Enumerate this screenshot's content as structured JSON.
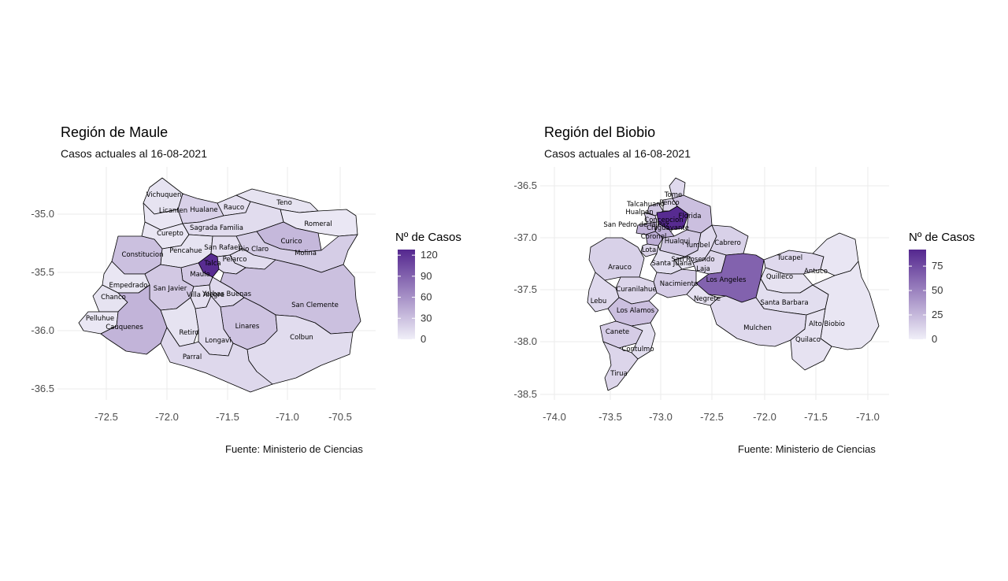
{
  "colors": {
    "low": "#f0eff8",
    "high": "#54278f",
    "grid": "#ebebeb",
    "border": "#000000"
  },
  "maps": [
    {
      "id": "maule",
      "title": "Región de Maule",
      "subtitle": "Casos actuales al 16-08-2021",
      "caption": "Fuente: Ministerio de Ciencias",
      "legend_title": "Nº de Casos",
      "legend_breaks": [
        "0",
        "30",
        "60",
        "90",
        "120"
      ],
      "legend_max": 128,
      "x_ticks": [
        "-72.5",
        "-72.0",
        "-71.5",
        "-71.0",
        "-70.5"
      ],
      "y_ticks": [
        "-35.0",
        "-35.5",
        "-36.0",
        "-36.5"
      ],
      "municipalities": [
        {
          "name": "Vichuquen",
          "cases": 8
        },
        {
          "name": "Licanten",
          "cases": 6
        },
        {
          "name": "Hualane",
          "cases": 20
        },
        {
          "name": "Rauco",
          "cases": 10
        },
        {
          "name": "Teno",
          "cases": 8
        },
        {
          "name": "Romeral",
          "cases": 5
        },
        {
          "name": "Curepto",
          "cases": 6
        },
        {
          "name": "Sagrada Familia",
          "cases": 12
        },
        {
          "name": "Curico",
          "cases": 35
        },
        {
          "name": "Molina",
          "cases": 22
        },
        {
          "name": "Constitucion",
          "cases": 30
        },
        {
          "name": "Pencahue",
          "cases": 8
        },
        {
          "name": "San Rafael",
          "cases": 10
        },
        {
          "name": "Rio Claro",
          "cases": 12
        },
        {
          "name": "Talca",
          "cases": 125
        },
        {
          "name": "Pelarco",
          "cases": 14
        },
        {
          "name": "Maule",
          "cases": 25
        },
        {
          "name": "San Clemente",
          "cases": 30
        },
        {
          "name": "Empedrado",
          "cases": 6
        },
        {
          "name": "San Javier",
          "cases": 25
        },
        {
          "name": "Villa Alegre",
          "cases": 10
        },
        {
          "name": "Yerbas Buenas",
          "cases": 15
        },
        {
          "name": "Chanco",
          "cases": 8
        },
        {
          "name": "Pelluhue",
          "cases": 5
        },
        {
          "name": "Cauquenes",
          "cases": 38
        },
        {
          "name": "Retiro",
          "cases": 8
        },
        {
          "name": "Linares",
          "cases": 28
        },
        {
          "name": "Longavi",
          "cases": 14
        },
        {
          "name": "Colbun",
          "cases": 12
        },
        {
          "name": "Parral",
          "cases": 15
        }
      ]
    },
    {
      "id": "biobio",
      "title": "Región del Biobio",
      "subtitle": "Casos actuales al 16-08-2021",
      "caption": "Fuente: Ministerio de Ciencias",
      "legend_title": "Nº de Casos",
      "legend_breaks": [
        "0",
        "25",
        "50",
        "75"
      ],
      "legend_max": 92,
      "x_ticks": [
        "-74.0",
        "-73.5",
        "-73.0",
        "-72.5",
        "-72.0",
        "-71.5",
        "-71.0"
      ],
      "y_ticks": [
        "-36.5",
        "-37.0",
        "-37.5",
        "-38.0",
        "-38.5"
      ],
      "municipalities": [
        {
          "name": "Tome",
          "cases": 10
        },
        {
          "name": "Talcahuano",
          "cases": 20
        },
        {
          "name": "Hualpen",
          "cases": 18
        },
        {
          "name": "Penco",
          "cases": 12
        },
        {
          "name": "Concepcion",
          "cases": 90
        },
        {
          "name": "Florida",
          "cases": 22
        },
        {
          "name": "Chiguayante",
          "cases": 30
        },
        {
          "name": "San Pedro de la Paz",
          "cases": 28
        },
        {
          "name": "Coronel",
          "cases": 30
        },
        {
          "name": "Lota",
          "cases": 12
        },
        {
          "name": "Hualqui",
          "cases": 18
        },
        {
          "name": "Yumbel",
          "cases": 10
        },
        {
          "name": "Cabrero",
          "cases": 14
        },
        {
          "name": "San Rosendo",
          "cases": 4
        },
        {
          "name": "Santa Juana",
          "cases": 8
        },
        {
          "name": "Laja",
          "cases": 12
        },
        {
          "name": "Los Angeles",
          "cases": 65
        },
        {
          "name": "Tucapel",
          "cases": 10
        },
        {
          "name": "Arauco",
          "cases": 14
        },
        {
          "name": "Nacimiento",
          "cases": 16
        },
        {
          "name": "Quilleco",
          "cases": 6
        },
        {
          "name": "Antuco",
          "cases": 4
        },
        {
          "name": "Curanilahue",
          "cases": 12
        },
        {
          "name": "Negrete",
          "cases": 6
        },
        {
          "name": "Lebu",
          "cases": 10
        },
        {
          "name": "Santa Barbara",
          "cases": 8
        },
        {
          "name": "Los Alamos",
          "cases": 22
        },
        {
          "name": "Mulchen",
          "cases": 10
        },
        {
          "name": "Alto Biobio",
          "cases": 4
        },
        {
          "name": "Canete",
          "cases": 16
        },
        {
          "name": "Quilaco",
          "cases": 6
        },
        {
          "name": "Contulmo",
          "cases": 8
        },
        {
          "name": "Tirua",
          "cases": 12
        }
      ]
    }
  ]
}
